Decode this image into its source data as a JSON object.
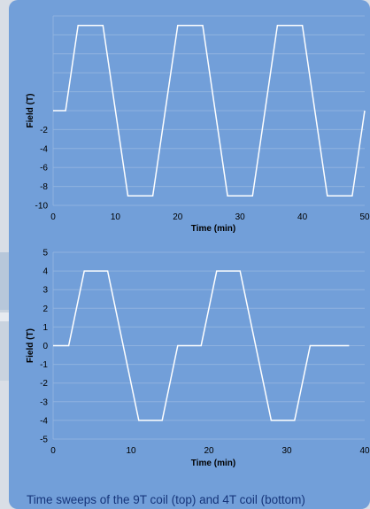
{
  "caption": "Time sweeps of the 9T coil (top) and 4T coil (bottom)",
  "chart_data": [
    {
      "type": "line",
      "title": "",
      "xlabel": "Time (min)",
      "ylabel": "Field (T)",
      "xlim": [
        0,
        50
      ],
      "ylim": [
        -10,
        10
      ],
      "xticks": [
        0,
        10,
        20,
        30,
        40,
        50
      ],
      "yticks_labeled": [
        -10,
        -8,
        -6,
        -4,
        -2
      ],
      "grid": true,
      "line_color": "#ffffff",
      "series": [
        {
          "x": [
            0,
            1,
            2,
            4,
            8,
            12,
            16,
            18,
            20,
            24,
            28,
            32,
            34,
            36,
            40,
            44,
            48,
            50
          ],
          "values": [
            0,
            0,
            0,
            9,
            9,
            -9,
            -9,
            0,
            9,
            9,
            -9,
            -9,
            0,
            9,
            9,
            -9,
            -9,
            0
          ]
        }
      ]
    },
    {
      "type": "line",
      "title": "",
      "xlabel": "Time (min)",
      "ylabel": "Field (T)",
      "xlim": [
        0,
        40
      ],
      "ylim": [
        -5,
        5
      ],
      "xticks": [
        0,
        10,
        20,
        30,
        40
      ],
      "yticks_labeled": [
        -5,
        -4,
        -3,
        -2,
        -1,
        0,
        1,
        2,
        3,
        4,
        5
      ],
      "grid": true,
      "line_color": "#ffffff",
      "series": [
        {
          "x": [
            0,
            2,
            4,
            7,
            11,
            14,
            16,
            19,
            21,
            24,
            28,
            31,
            33,
            38
          ],
          "values": [
            0,
            0,
            4,
            4,
            -4,
            -4,
            0,
            0,
            4,
            4,
            -4,
            -4,
            0,
            0
          ]
        }
      ]
    }
  ]
}
